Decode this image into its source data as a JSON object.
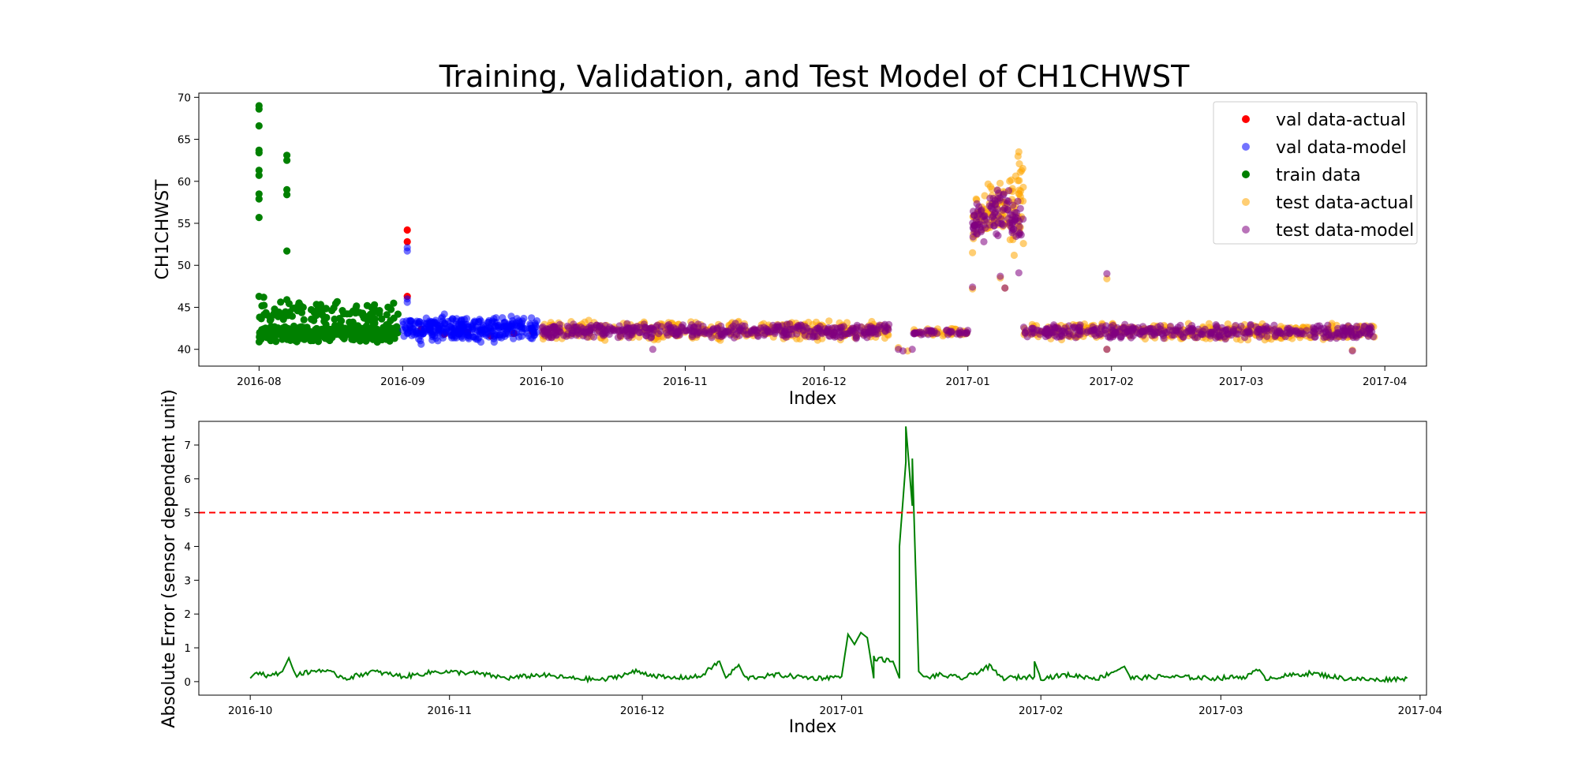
{
  "chart_data": [
    {
      "type": "scatter",
      "title": "Training, Validation, and Test Model of CH1CHWST",
      "xlabel": "Index",
      "ylabel": "CH1CHWST",
      "x_axis": "date",
      "xlim": [
        "2016-07-19",
        "2017-04-10"
      ],
      "ylim": [
        38,
        70.5
      ],
      "x_ticks": [
        "2016-08",
        "2016-09",
        "2016-10",
        "2016-11",
        "2016-12",
        "2017-01",
        "2017-02",
        "2017-03",
        "2017-04"
      ],
      "y_ticks": [
        40,
        45,
        50,
        55,
        60,
        65,
        70
      ],
      "legend_position": "top-right",
      "series": [
        {
          "name": "val data-actual",
          "color": "#ff0000",
          "alpha": 1.0,
          "points": [
            [
              "2016-09-02",
              54.2
            ],
            [
              "2016-09-02",
              52.8
            ],
            [
              "2016-09-02",
              46.3
            ],
            [
              "2016-09-05",
              42.4
            ],
            [
              "2016-09-10",
              41.8
            ],
            [
              "2016-09-15",
              42.0
            ],
            [
              "2016-09-20",
              41.6
            ],
            [
              "2016-09-25",
              41.9
            ],
            [
              "2016-09-29",
              42.1
            ]
          ]
        },
        {
          "name": "val data-model",
          "color": "#0000ff",
          "alpha": 0.55,
          "bands": [
            {
              "x_start": "2016-09-01",
              "x_end": "2016-09-30",
              "y_low": 40.8,
              "y_high": 44.0,
              "count": 340
            }
          ],
          "points": [
            [
              "2016-09-02",
              51.7
            ],
            [
              "2016-09-02",
              52.1
            ],
            [
              "2016-09-02",
              45.6
            ],
            [
              "2016-09-02",
              46.0
            ],
            [
              "2016-09-05",
              40.6
            ],
            [
              "2016-09-10",
              44.2
            ]
          ]
        },
        {
          "name": "train data",
          "color": "#008000",
          "alpha": 1.0,
          "bands": [
            {
              "x_start": "2016-08-01",
              "x_end": "2016-08-31",
              "y_low": 40.8,
              "y_high": 43.0,
              "count": 360
            },
            {
              "x_start": "2016-08-01",
              "x_end": "2016-08-31",
              "y_low": 42.5,
              "y_high": 46.0,
              "count": 110
            }
          ],
          "points": [
            [
              "2016-08-01",
              69.0
            ],
            [
              "2016-08-01",
              68.6
            ],
            [
              "2016-08-01",
              66.6
            ],
            [
              "2016-08-01",
              63.7
            ],
            [
              "2016-08-01",
              63.4
            ],
            [
              "2016-08-01",
              61.3
            ],
            [
              "2016-08-01",
              60.7
            ],
            [
              "2016-08-01",
              58.5
            ],
            [
              "2016-08-01",
              57.9
            ],
            [
              "2016-08-01",
              55.7
            ],
            [
              "2016-08-01",
              46.3
            ],
            [
              "2016-08-02",
              46.2
            ],
            [
              "2016-08-07",
              63.1
            ],
            [
              "2016-08-07",
              62.5
            ],
            [
              "2016-08-07",
              59.0
            ],
            [
              "2016-08-07",
              58.4
            ],
            [
              "2016-08-07",
              51.7
            ],
            [
              "2016-08-07",
              45.9
            ]
          ]
        },
        {
          "name": "test data-actual",
          "color": "#ffa500",
          "alpha": 0.55,
          "bands": [
            {
              "x_start": "2016-10-01",
              "x_end": "2016-12-15",
              "y_low": 41.0,
              "y_high": 43.5,
              "count": 380
            },
            {
              "x_start": "2016-12-20",
              "x_end": "2017-01-01",
              "y_low": 41.5,
              "y_high": 42.5,
              "count": 40
            },
            {
              "x_start": "2017-01-13",
              "x_end": "2017-03-30",
              "y_low": 41.0,
              "y_high": 43.2,
              "count": 320
            },
            {
              "x_start": "2017-01-02",
              "x_end": "2017-01-06",
              "y_low": 52.0,
              "y_high": 60.2,
              "count": 40
            },
            {
              "x_start": "2017-01-06",
              "x_end": "2017-01-10",
              "y_low": 53.5,
              "y_high": 60.5,
              "count": 40
            },
            {
              "x_start": "2017-01-10",
              "x_end": "2017-01-13",
              "y_low": 52.0,
              "y_high": 63.5,
              "count": 40
            }
          ],
          "points": [
            [
              "2016-12-17",
              40.2
            ],
            [
              "2016-12-19",
              39.8
            ],
            [
              "2017-01-02",
              47.2
            ],
            [
              "2017-01-02",
              51.5
            ],
            [
              "2017-01-08",
              48.5
            ],
            [
              "2017-01-09",
              47.3
            ],
            [
              "2017-01-11",
              51.2
            ],
            [
              "2017-01-12",
              63.5
            ],
            [
              "2017-01-31",
              48.4
            ],
            [
              "2017-01-31",
              40.0
            ],
            [
              "2017-03-25",
              39.9
            ]
          ]
        },
        {
          "name": "test data-model",
          "color": "#800080",
          "alpha": 0.55,
          "bands": [
            {
              "x_start": "2016-10-01",
              "x_end": "2016-12-15",
              "y_low": 41.2,
              "y_high": 43.2,
              "count": 420
            },
            {
              "x_start": "2016-12-20",
              "x_end": "2017-01-01",
              "y_low": 41.6,
              "y_high": 42.4,
              "count": 40
            },
            {
              "x_start": "2017-01-13",
              "x_end": "2017-03-30",
              "y_low": 41.2,
              "y_high": 43.0,
              "count": 380
            },
            {
              "x_start": "2017-01-02",
              "x_end": "2017-01-06",
              "y_low": 52.5,
              "y_high": 59.0,
              "count": 40
            },
            {
              "x_start": "2017-01-06",
              "x_end": "2017-01-10",
              "y_low": 53.0,
              "y_high": 59.5,
              "count": 40
            },
            {
              "x_start": "2017-01-10",
              "x_end": "2017-01-13",
              "y_low": 52.5,
              "y_high": 58.8,
              "count": 30
            }
          ],
          "points": [
            [
              "2016-10-25",
              40.0
            ],
            [
              "2016-12-17",
              40.0
            ],
            [
              "2016-12-18",
              39.8
            ],
            [
              "2016-12-20",
              40.0
            ],
            [
              "2017-01-02",
              47.4
            ],
            [
              "2017-01-08",
              48.7
            ],
            [
              "2017-01-09",
              47.3
            ],
            [
              "2017-01-12",
              49.1
            ],
            [
              "2017-01-31",
              49.0
            ],
            [
              "2017-01-31",
              40.0
            ],
            [
              "2017-03-25",
              39.8
            ]
          ]
        }
      ]
    },
    {
      "type": "line",
      "title": "",
      "xlabel": "Index",
      "ylabel": "Absolute Error (sensor dependent unit)",
      "x_axis": "date",
      "xlim": [
        "2016-09-23",
        "2017-04-02"
      ],
      "ylim": [
        -0.4,
        7.7
      ],
      "x_ticks": [
        "2016-10",
        "2016-11",
        "2016-12",
        "2017-01",
        "2017-02",
        "2017-03",
        "2017-04"
      ],
      "y_ticks": [
        0,
        1,
        2,
        3,
        4,
        5,
        6,
        7
      ],
      "threshold": {
        "value": 5,
        "color": "#ff0000",
        "style": "dashed"
      },
      "series": [
        {
          "color": "#008000",
          "points": [
            [
              "2016-10-01",
              0.1
            ],
            [
              "2016-10-02",
              0.3
            ],
            [
              "2016-10-04",
              0.15
            ],
            [
              "2016-10-06",
              0.3
            ],
            [
              "2016-10-07",
              0.7
            ],
            [
              "2016-10-08",
              0.2
            ],
            [
              "2016-10-12",
              0.35
            ],
            [
              "2016-10-16",
              0.1
            ],
            [
              "2016-10-20",
              0.3
            ],
            [
              "2016-10-25",
              0.15
            ],
            [
              "2016-10-30",
              0.3
            ],
            [
              "2016-11-05",
              0.25
            ],
            [
              "2016-11-10",
              0.1
            ],
            [
              "2016-11-15",
              0.2
            ],
            [
              "2016-11-20",
              0.1
            ],
            [
              "2016-11-25",
              0.05
            ],
            [
              "2016-11-30",
              0.3
            ],
            [
              "2016-12-05",
              0.1
            ],
            [
              "2016-12-10",
              0.15
            ],
            [
              "2016-12-13",
              0.6
            ],
            [
              "2016-12-14",
              0.1
            ],
            [
              "2016-12-16",
              0.5
            ],
            [
              "2016-12-17",
              0.1
            ],
            [
              "2016-12-22",
              0.2
            ],
            [
              "2016-12-28",
              0.1
            ],
            [
              "2017-01-01",
              0.15
            ],
            [
              "2017-01-02",
              1.4
            ],
            [
              "2017-01-03",
              1.1
            ],
            [
              "2017-01-04",
              1.45
            ],
            [
              "2017-01-05",
              1.3
            ],
            [
              "2017-01-06",
              0.1
            ],
            [
              "2017-01-06",
              0.7
            ],
            [
              "2017-01-09",
              0.6
            ],
            [
              "2017-01-10",
              0.1
            ],
            [
              "2017-01-10",
              4.0
            ],
            [
              "2017-01-11",
              6.5
            ],
            [
              "2017-01-11",
              7.55
            ],
            [
              "2017-01-12",
              5.2
            ],
            [
              "2017-01-12",
              6.6
            ],
            [
              "2017-01-13",
              0.3
            ],
            [
              "2017-01-14",
              0.1
            ],
            [
              "2017-01-16",
              0.2
            ],
            [
              "2017-01-20",
              0.1
            ],
            [
              "2017-01-24",
              0.45
            ],
            [
              "2017-01-26",
              0.1
            ],
            [
              "2017-01-31",
              0.15
            ],
            [
              "2017-01-31",
              0.6
            ],
            [
              "2017-02-01",
              0.1
            ],
            [
              "2017-02-05",
              0.2
            ],
            [
              "2017-02-10",
              0.1
            ],
            [
              "2017-02-14",
              0.45
            ],
            [
              "2017-02-15",
              0.1
            ],
            [
              "2017-02-20",
              0.15
            ],
            [
              "2017-02-28",
              0.1
            ],
            [
              "2017-03-05",
              0.15
            ],
            [
              "2017-03-07",
              0.35
            ],
            [
              "2017-03-08",
              0.1
            ],
            [
              "2017-03-15",
              0.25
            ],
            [
              "2017-03-20",
              0.1
            ],
            [
              "2017-03-25",
              0.05
            ],
            [
              "2017-03-30",
              0.1
            ]
          ]
        }
      ]
    }
  ]
}
